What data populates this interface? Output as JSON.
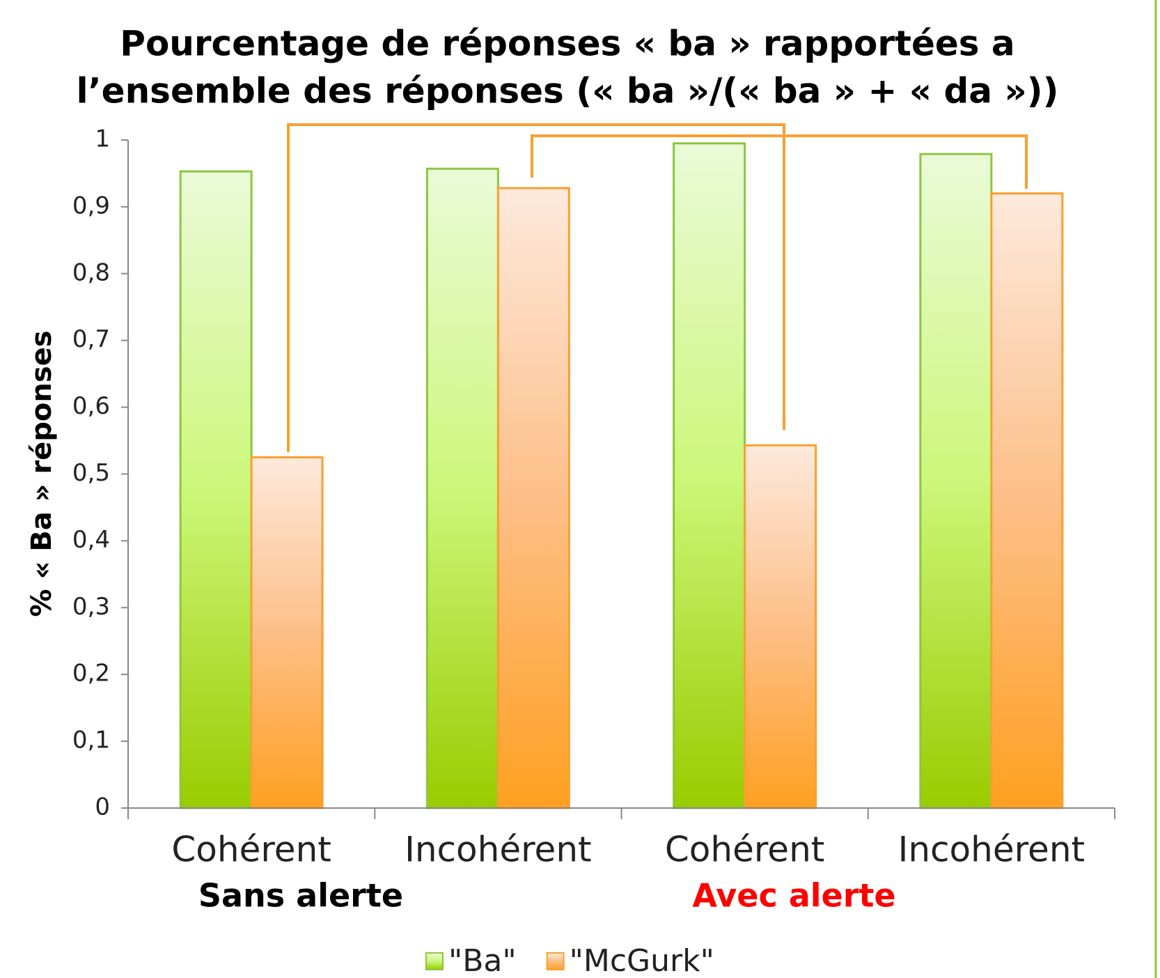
{
  "chart_data": {
    "type": "bar",
    "title": [
      "Pourcentage de réponses « ba » rapportées a",
      "l’ensemble des réponses (« ba »/(« ba » + « da »))"
    ],
    "ylabel": "% « Ba »  réponses",
    "categories": [
      "Cohérent",
      "Incohérent",
      "Cohérent",
      "Incohérent"
    ],
    "groups": [
      {
        "label": "Sans alerte",
        "color": "#000000"
      },
      {
        "label": "Avec alerte",
        "color": "#ff0000"
      }
    ],
    "series": [
      {
        "name": "\"Ba\"",
        "color": "#99cc00",
        "values": [
          0.953,
          0.957,
          0.995,
          0.979
        ]
      },
      {
        "name": "\"McGurk\"",
        "color": "#ffa020",
        "values": [
          0.525,
          0.928,
          0.543,
          0.92
        ]
      }
    ],
    "ylim": [
      0,
      1
    ],
    "yticks": [
      0,
      {
        "value": 0.1,
        "label": "0,1"
      },
      {
        "value": 0.2,
        "label": "0,2"
      },
      {
        "value": 0.3,
        "label": "0,3"
      },
      {
        "value": 0.4,
        "label": "0,4"
      },
      {
        "value": 0.5,
        "label": "0,5"
      },
      {
        "value": 0.6,
        "label": "0,6"
      },
      {
        "value": 0.7,
        "label": "0,7"
      },
      {
        "value": 0.8,
        "label": "0,8"
      },
      {
        "value": 0.9,
        "label": "0,9"
      },
      1
    ],
    "legend": "bottom"
  }
}
